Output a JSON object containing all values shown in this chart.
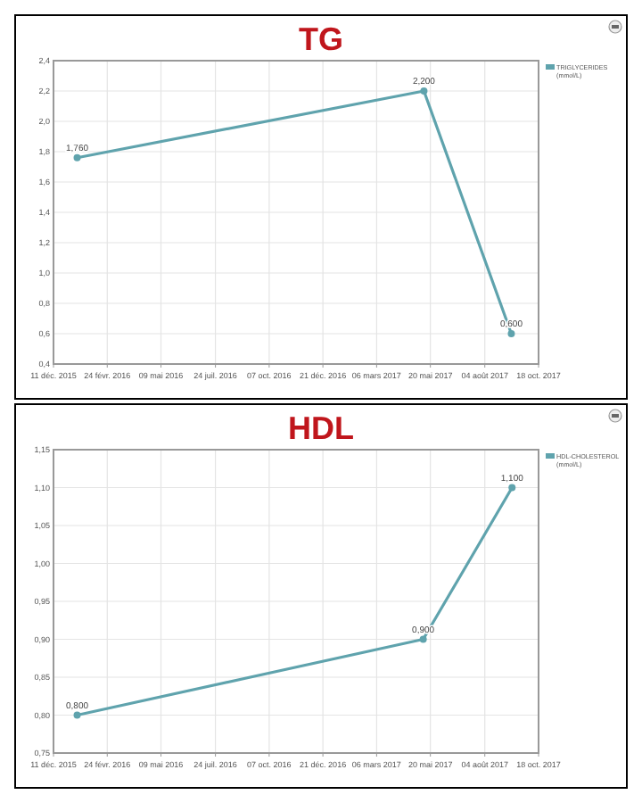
{
  "chart_data": [
    {
      "type": "line",
      "title": "TG",
      "x": [
        "2016-01-13",
        "2017-05-11",
        "2017-09-10"
      ],
      "series": [
        {
          "name": "TRIGLYCERIDES (mmol/L)",
          "color": "#5fa3ad",
          "values": [
            1.76,
            2.2,
            0.6
          ],
          "value_labels": [
            "1,760",
            "2,200",
            "0,600"
          ]
        }
      ],
      "xlim": [
        "2015-12-11",
        "2017-10-18"
      ],
      "xticks": [
        {
          "value": "2015-12-11",
          "label": "11 déc. 2015"
        },
        {
          "value": "2016-02-24",
          "label": "24 févr. 2016"
        },
        {
          "value": "2016-05-09",
          "label": "09 mai 2016"
        },
        {
          "value": "2016-07-24",
          "label": "24 juil. 2016"
        },
        {
          "value": "2016-10-07",
          "label": "07 oct. 2016"
        },
        {
          "value": "2016-12-21",
          "label": "21 déc. 2016"
        },
        {
          "value": "2017-03-06",
          "label": "06 mars 2017"
        },
        {
          "value": "2017-05-20",
          "label": "20 mai 2017"
        },
        {
          "value": "2017-08-04",
          "label": "04 août 2017"
        },
        {
          "value": "2017-10-18",
          "label": "18 oct. 2017"
        }
      ],
      "ylim": [
        0.4,
        2.4
      ],
      "yticks": [
        {
          "value": 0.4,
          "label": "0,4"
        },
        {
          "value": 0.6,
          "label": "0,6"
        },
        {
          "value": 0.8,
          "label": "0,8"
        },
        {
          "value": 1.0,
          "label": "1,0"
        },
        {
          "value": 1.2,
          "label": "1,2"
        },
        {
          "value": 1.4,
          "label": "1,4"
        },
        {
          "value": 1.6,
          "label": "1,6"
        },
        {
          "value": 1.8,
          "label": "1,8"
        },
        {
          "value": 2.0,
          "label": "2,0"
        },
        {
          "value": 2.2,
          "label": "2,2"
        },
        {
          "value": 2.4,
          "label": "2,4"
        }
      ],
      "grid": true,
      "legend": "top right",
      "marker": "circle"
    },
    {
      "type": "line",
      "title": "HDL",
      "x": [
        "2016-01-13",
        "2017-05-10",
        "2017-09-11"
      ],
      "series": [
        {
          "name": "HDL-CHOLESTEROL (mmol/L)",
          "color": "#5fa3ad",
          "values": [
            0.8,
            0.9,
            1.1
          ],
          "value_labels": [
            "0,800",
            "0,900",
            "1,100"
          ]
        }
      ],
      "xlim": [
        "2015-12-11",
        "2017-10-18"
      ],
      "xticks": [
        {
          "value": "2015-12-11",
          "label": "11 déc. 2015"
        },
        {
          "value": "2016-02-24",
          "label": "24 févr. 2016"
        },
        {
          "value": "2016-05-09",
          "label": "09 mai 2016"
        },
        {
          "value": "2016-07-24",
          "label": "24 juil. 2016"
        },
        {
          "value": "2016-10-07",
          "label": "07 oct. 2016"
        },
        {
          "value": "2016-12-21",
          "label": "21 déc. 2016"
        },
        {
          "value": "2017-03-06",
          "label": "06 mars 2017"
        },
        {
          "value": "2017-05-20",
          "label": "20 mai 2017"
        },
        {
          "value": "2017-08-04",
          "label": "04 août 2017"
        },
        {
          "value": "2017-10-18",
          "label": "18 oct. 2017"
        }
      ],
      "ylim": [
        0.75,
        1.15
      ],
      "yticks": [
        {
          "value": 0.75,
          "label": "0,75"
        },
        {
          "value": 0.8,
          "label": "0,80"
        },
        {
          "value": 0.85,
          "label": "0,85"
        },
        {
          "value": 0.9,
          "label": "0,90"
        },
        {
          "value": 0.95,
          "label": "0,95"
        },
        {
          "value": 1.0,
          "label": "1,00"
        },
        {
          "value": 1.05,
          "label": "1,05"
        },
        {
          "value": 1.1,
          "label": "1,10"
        },
        {
          "value": 1.15,
          "label": "1,15"
        }
      ],
      "grid": true,
      "legend": "top right",
      "marker": "circle"
    }
  ]
}
